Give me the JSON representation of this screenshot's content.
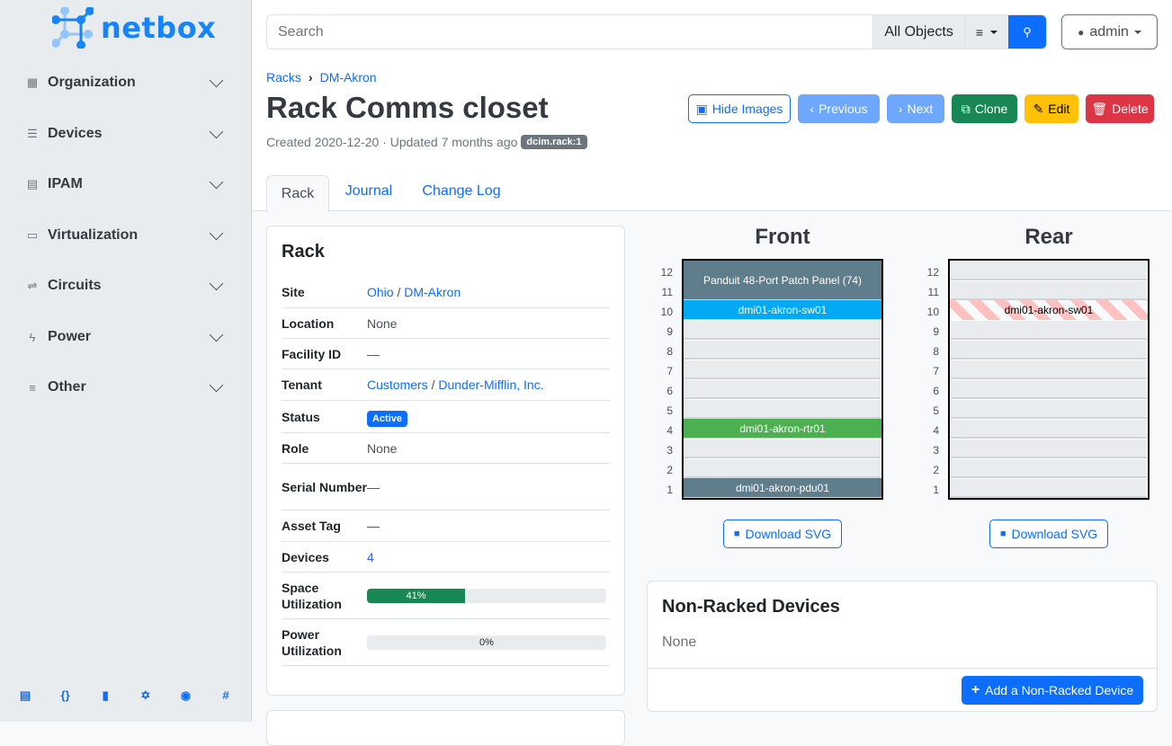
{
  "brand": {
    "name": "netbox",
    "color": "#1685fc"
  },
  "sidebar": {
    "items": [
      {
        "label": "Organization",
        "icon": "domain-icon"
      },
      {
        "label": "Devices",
        "icon": "server-icon"
      },
      {
        "label": "IPAM",
        "icon": "counter-icon"
      },
      {
        "label": "Virtualization",
        "icon": "monitor-icon"
      },
      {
        "label": "Circuits",
        "icon": "transit-icon"
      },
      {
        "label": "Power",
        "icon": "flash-icon"
      },
      {
        "label": "Other",
        "icon": "notes-icon"
      }
    ],
    "footer": [
      "docs-icon",
      "api-icon",
      "book-icon",
      "graphql-icon",
      "github-icon",
      "slack-icon"
    ]
  },
  "search": {
    "placeholder": "Search",
    "scope": "All Objects"
  },
  "user": {
    "name": "admin"
  },
  "breadcrumb": [
    "Racks",
    "DM-Akron"
  ],
  "title": "Rack Comms closet",
  "meta": {
    "text": "Created 2020-12-20 · Updated 7 months ago",
    "tag": "dcim.rack:1"
  },
  "actions": {
    "hide_images": "Hide Images",
    "previous": "Previous",
    "next": "Next",
    "clone": "Clone",
    "edit": "Edit",
    "delete": "Delete"
  },
  "tabs": [
    "Rack",
    "Journal",
    "Change Log"
  ],
  "rack_card": {
    "title": "Rack",
    "site": {
      "label": "Site",
      "region": "Ohio",
      "site": "DM-Akron"
    },
    "location": {
      "label": "Location",
      "value": "None"
    },
    "facility": {
      "label": "Facility ID",
      "value": "—"
    },
    "tenant": {
      "label": "Tenant",
      "group": "Customers",
      "tenant": "Dunder-Mifflin, Inc."
    },
    "status": {
      "label": "Status",
      "value": "Active"
    },
    "role": {
      "label": "Role",
      "value": "None"
    },
    "serial": {
      "label": "Serial Number",
      "value": "—"
    },
    "asset": {
      "label": "Asset Tag",
      "value": "—"
    },
    "devices": {
      "label": "Devices",
      "value": "4"
    },
    "space": {
      "label": "Space Utilization",
      "percent": 41,
      "text": "41%"
    },
    "power": {
      "label": "Power Utilization",
      "percent": 0,
      "text": "0%"
    }
  },
  "elevation": {
    "front_title": "Front",
    "rear_title": "Rear",
    "download": "Download SVG",
    "units": [
      "12",
      "11",
      "10",
      "9",
      "8",
      "7",
      "6",
      "5",
      "4",
      "3",
      "2",
      "1"
    ],
    "front": [
      {
        "name": "Panduit 48-Port Patch Panel (74)",
        "top": 12,
        "height": 2,
        "color": "#607d8b"
      },
      {
        "name": "dmi01-akron-sw01",
        "top": 10,
        "height": 1,
        "color": "#03a9f4"
      },
      {
        "name": "dmi01-akron-rtr01",
        "top": 4,
        "height": 1,
        "color": "#4caf50"
      },
      {
        "name": "dmi01-akron-pdu01",
        "top": 1,
        "height": 1,
        "color": "#607d8b"
      }
    ],
    "rear": [
      {
        "name": "dmi01-akron-sw01",
        "top": 10,
        "height": 1,
        "color": "striped"
      }
    ]
  },
  "non_racked": {
    "title": "Non-Racked Devices",
    "value": "None",
    "add": "Add a Non-Racked Device"
  }
}
